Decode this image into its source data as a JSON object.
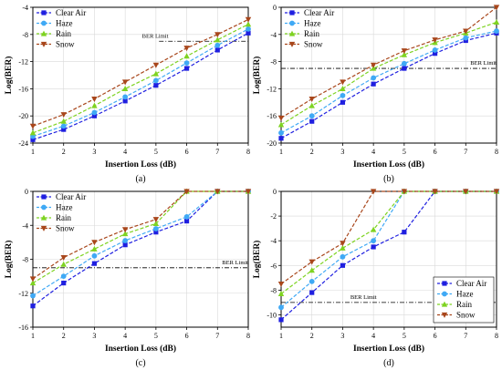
{
  "figure_colors": {
    "Clear Air": "#1f1fe0",
    "Haze": "#3fa9f5",
    "Rain": "#7ed321",
    "Snow": "#a8461b",
    "grid": "#d9d9d9",
    "ber_limit": "#000000"
  },
  "chart_data": [
    {
      "type": "line",
      "caption": "(a)",
      "xlabel": "Insertion Loss (dB)",
      "ylabel": "Log(BER)",
      "x": [
        1,
        2,
        3,
        4,
        5,
        6,
        7,
        8
      ],
      "xlim": [
        1,
        8
      ],
      "ylim": [
        -24,
        -4
      ],
      "yticks": [
        -4,
        -8,
        -12,
        -16,
        -20,
        -24
      ],
      "grid": true,
      "legend_position": "top-left",
      "ber_limit": {
        "label": "BER Limit",
        "value": -9,
        "x_from": 5.1
      },
      "series": [
        {
          "name": "Clear Air",
          "marker": "square",
          "values": [
            -23.5,
            -22.0,
            -20.0,
            -17.8,
            -15.5,
            -13.0,
            -10.3,
            -7.8
          ]
        },
        {
          "name": "Haze",
          "marker": "circle",
          "values": [
            -23.0,
            -21.5,
            -19.5,
            -17.2,
            -14.8,
            -12.2,
            -9.6,
            -7.2
          ]
        },
        {
          "name": "Rain",
          "marker": "triangle-up",
          "values": [
            -22.5,
            -20.8,
            -18.5,
            -16.0,
            -13.8,
            -11.2,
            -8.8,
            -6.5
          ]
        },
        {
          "name": "Snow",
          "marker": "triangle-down",
          "values": [
            -21.5,
            -19.8,
            -17.5,
            -15.0,
            -12.5,
            -10.0,
            -8.0,
            -5.8
          ]
        }
      ]
    },
    {
      "type": "line",
      "caption": "(b)",
      "xlabel": "Insertion Loss (dB)",
      "ylabel": "Log(BER)",
      "x": [
        1,
        2,
        3,
        4,
        5,
        6,
        7,
        8
      ],
      "xlim": [
        1,
        8
      ],
      "ylim": [
        -20,
        0
      ],
      "yticks": [
        0,
        -4,
        -8,
        -12,
        -16,
        -20
      ],
      "grid": true,
      "legend_position": "top-left",
      "ber_limit": {
        "label": "BER Limit",
        "value": -9,
        "x_from": 1
      },
      "series": [
        {
          "name": "Clear Air",
          "marker": "square",
          "values": [
            -19.3,
            -16.8,
            -14.0,
            -11.3,
            -9.0,
            -6.8,
            -4.9,
            -3.8
          ]
        },
        {
          "name": "Haze",
          "marker": "circle",
          "values": [
            -18.5,
            -16.0,
            -13.0,
            -10.4,
            -8.3,
            -6.3,
            -4.5,
            -3.5
          ]
        },
        {
          "name": "Rain",
          "marker": "triangle-up",
          "values": [
            -17.3,
            -14.5,
            -12.0,
            -9.0,
            -7.0,
            -5.2,
            -3.8,
            -2.2
          ]
        },
        {
          "name": "Snow",
          "marker": "triangle-down",
          "values": [
            -16.3,
            -13.5,
            -11.0,
            -8.5,
            -6.4,
            -4.8,
            -3.5,
            0
          ]
        }
      ]
    },
    {
      "type": "line",
      "caption": "(c)",
      "xlabel": "Insertion Loss (dB)",
      "ylabel": "Log(BER)",
      "x": [
        1,
        2,
        3,
        4,
        5,
        6,
        7,
        8
      ],
      "xlim": [
        1,
        8
      ],
      "ylim": [
        -16,
        0
      ],
      "yticks": [
        0,
        -4,
        -8,
        -12,
        -16
      ],
      "grid": true,
      "legend_position": "top-left",
      "ber_limit": {
        "label": "BER Limit",
        "value": -9,
        "x_from": 1
      },
      "series": [
        {
          "name": "Clear Air",
          "marker": "square",
          "values": [
            -13.5,
            -10.8,
            -8.5,
            -6.3,
            -4.8,
            -3.5,
            0,
            0
          ]
        },
        {
          "name": "Haze",
          "marker": "circle",
          "values": [
            -12.3,
            -10.0,
            -7.6,
            -5.8,
            -4.4,
            -3.0,
            0,
            0
          ]
        },
        {
          "name": "Rain",
          "marker": "triangle-up",
          "values": [
            -10.8,
            -8.6,
            -6.8,
            -5.0,
            -3.8,
            0,
            0,
            0
          ]
        },
        {
          "name": "Snow",
          "marker": "triangle-down",
          "values": [
            -10.3,
            -7.8,
            -6.0,
            -4.5,
            -3.3,
            0,
            0,
            0
          ]
        }
      ]
    },
    {
      "type": "line",
      "caption": "(d)",
      "xlabel": "Insertion Loss (dB)",
      "ylabel": "Log(BER)",
      "x": [
        1,
        2,
        3,
        4,
        5,
        6,
        7,
        8
      ],
      "xlim": [
        1,
        8
      ],
      "ylim": [
        -11,
        0
      ],
      "yticks": [
        0,
        -2,
        -4,
        -6,
        -8,
        -10
      ],
      "grid": true,
      "legend_position": "bottom-right",
      "ber_limit": {
        "label": "BER Limit",
        "value": -9,
        "x_from": 1
      },
      "series": [
        {
          "name": "Clear Air",
          "marker": "square",
          "values": [
            -10.4,
            -8.2,
            -6.0,
            -4.5,
            -3.3,
            0,
            0,
            0
          ]
        },
        {
          "name": "Haze",
          "marker": "circle",
          "values": [
            -9.4,
            -7.3,
            -5.3,
            -4.0,
            0,
            0,
            0,
            0
          ]
        },
        {
          "name": "Rain",
          "marker": "triangle-up",
          "values": [
            -8.3,
            -6.4,
            -4.6,
            -3.1,
            0,
            0,
            0,
            0
          ]
        },
        {
          "name": "Snow",
          "marker": "triangle-down",
          "values": [
            -7.5,
            -5.7,
            -4.2,
            0,
            0,
            0,
            0,
            0
          ]
        }
      ]
    }
  ]
}
